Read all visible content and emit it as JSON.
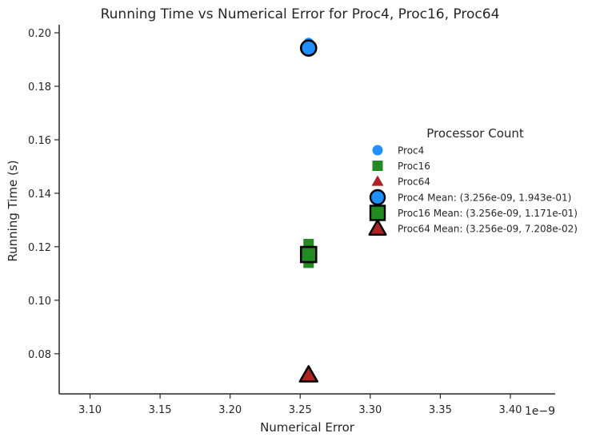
{
  "chart_data": {
    "type": "scatter",
    "title": "Running Time vs Numerical Error for Proc4, Proc16, Proc64",
    "xlabel": "Numerical Error",
    "ylabel": "Running Time (s)",
    "x_offset_label": "1e−9",
    "x_scale_factor": 1e-09,
    "xlim": [
      3.078,
      3.432
    ],
    "ylim": [
      0.065,
      0.203
    ],
    "x_ticks": [
      3.1,
      3.15,
      3.2,
      3.25,
      3.3,
      3.35,
      3.4
    ],
    "x_tick_labels": [
      "3.10",
      "3.15",
      "3.20",
      "3.25",
      "3.30",
      "3.35",
      "3.40"
    ],
    "y_ticks": [
      0.08,
      0.1,
      0.12,
      0.14,
      0.16,
      0.18,
      0.2
    ],
    "y_tick_labels": [
      "0.08",
      "0.10",
      "0.12",
      "0.14",
      "0.16",
      "0.18",
      "0.20"
    ],
    "grid": false,
    "legend": {
      "title": "Processor Count",
      "placement": "right"
    },
    "series": [
      {
        "name": "Proc4",
        "marker": "circle",
        "color": "#1e90ff",
        "points": [
          [
            3.256,
            0.1962
          ],
          [
            3.256,
            0.1941
          ],
          [
            3.256,
            0.193
          ]
        ]
      },
      {
        "name": "Proc16",
        "marker": "square",
        "color": "#228b22",
        "points": [
          [
            3.256,
            0.121
          ],
          [
            3.256,
            0.1168
          ],
          [
            3.256,
            0.114
          ]
        ]
      },
      {
        "name": "Proc64",
        "marker": "triangle",
        "color": "#b22222",
        "points": [
          [
            3.256,
            0.0735
          ],
          [
            3.256,
            0.0718
          ],
          [
            3.256,
            0.071
          ]
        ]
      }
    ],
    "means": [
      {
        "name": "Proc4 Mean: (3.256e-09, 1.943e-01)",
        "marker": "circle",
        "color": "#1e90ff",
        "x": 3.256,
        "y": 0.1943
      },
      {
        "name": "Proc16 Mean: (3.256e-09, 1.171e-01)",
        "marker": "square",
        "color": "#228b22",
        "x": 3.256,
        "y": 0.1171
      },
      {
        "name": "Proc64 Mean: (3.256e-09, 7.208e-02)",
        "marker": "triangle",
        "color": "#b22222",
        "x": 3.256,
        "y": 0.07208
      }
    ]
  }
}
